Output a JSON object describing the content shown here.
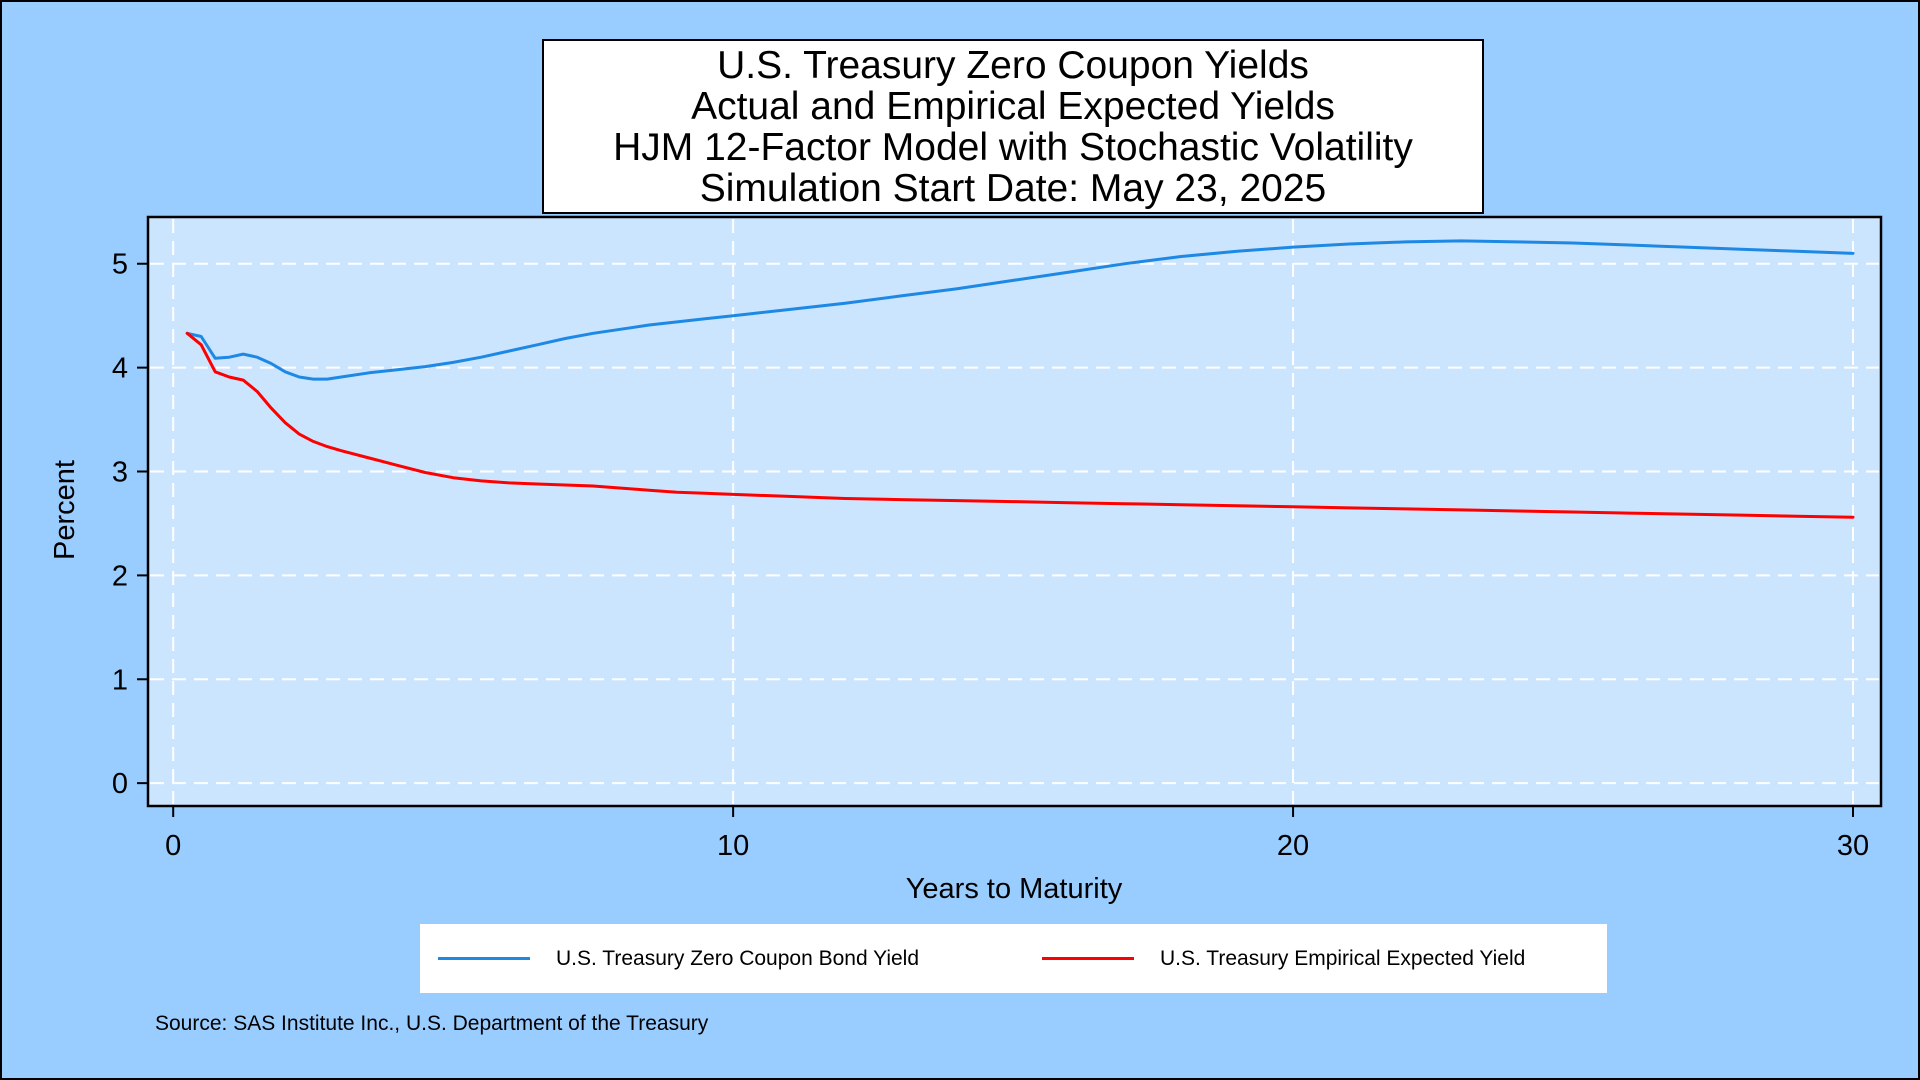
{
  "colors": {
    "outer_background": "#99ccff",
    "plot_background": "#cce5ff",
    "grid": "#ffffff",
    "series_actual": "#1e88e5",
    "series_expected": "#ff0000"
  },
  "title_lines": [
    "U.S. Treasury Zero Coupon Yields",
    "Actual and Empirical Expected Yields",
    "HJM 12-Factor Model with Stochastic Volatility",
    "Simulation Start Date: May 23, 2025"
  ],
  "source": "Source: SAS Institute Inc., U.S. Department of the Treasury",
  "chart_data": {
    "type": "line",
    "title": "U.S. Treasury Zero Coupon Yields\nActual and Empirical Expected Yields\nHJM 12-Factor Model with Stochastic Volatility\nSimulation Start Date: May 23, 2025",
    "xlabel": "Years to Maturity",
    "ylabel": "Percent",
    "xlim": [
      -0.45,
      30.5
    ],
    "ylim": [
      -0.22,
      5.45
    ],
    "x_ticks": [
      0,
      10,
      20,
      30
    ],
    "y_ticks": [
      0,
      1,
      2,
      3,
      4,
      5
    ],
    "grid": true,
    "grid_style": "dashed",
    "legend_position": "bottom",
    "series": [
      {
        "name": "U.S. Treasury Zero Coupon Bond Yield",
        "x": [
          0.25,
          0.5,
          0.75,
          1.0,
          1.25,
          1.5,
          1.75,
          2.0,
          2.25,
          2.5,
          2.75,
          3.0,
          3.5,
          4.0,
          4.5,
          5.0,
          5.5,
          6.0,
          6.5,
          7.0,
          7.5,
          8.0,
          8.5,
          9.0,
          9.5,
          10.0,
          11.0,
          12.0,
          13.0,
          14.0,
          15.0,
          16.0,
          17.0,
          18.0,
          19.0,
          20.0,
          21.0,
          22.0,
          23.0,
          24.0,
          25.0,
          26.0,
          27.0,
          28.0,
          29.0,
          30.0
        ],
        "values": [
          4.33,
          4.3,
          4.09,
          4.1,
          4.13,
          4.1,
          4.04,
          3.96,
          3.91,
          3.89,
          3.89,
          3.91,
          3.95,
          3.98,
          4.01,
          4.05,
          4.1,
          4.16,
          4.22,
          4.28,
          4.33,
          4.37,
          4.41,
          4.44,
          4.47,
          4.5,
          4.56,
          4.62,
          4.69,
          4.76,
          4.84,
          4.92,
          5.0,
          5.07,
          5.12,
          5.16,
          5.19,
          5.21,
          5.22,
          5.21,
          5.2,
          5.18,
          5.16,
          5.14,
          5.12,
          5.1
        ]
      },
      {
        "name": "U.S. Treasury Empirical Expected Yield",
        "x": [
          0.25,
          0.5,
          0.75,
          1.0,
          1.25,
          1.5,
          1.75,
          2.0,
          2.25,
          2.5,
          2.75,
          3.0,
          3.5,
          4.0,
          4.5,
          5.0,
          5.5,
          6.0,
          6.5,
          7.0,
          7.5,
          8.0,
          8.5,
          9.0,
          9.5,
          10.0,
          11.0,
          12.0,
          13.0,
          14.0,
          15.0,
          16.0,
          17.0,
          18.0,
          19.0,
          20.0,
          21.0,
          22.0,
          23.0,
          24.0,
          25.0,
          26.0,
          27.0,
          28.0,
          29.0,
          30.0
        ],
        "values": [
          4.33,
          4.22,
          3.96,
          3.91,
          3.88,
          3.77,
          3.61,
          3.47,
          3.36,
          3.29,
          3.24,
          3.2,
          3.13,
          3.06,
          2.99,
          2.94,
          2.91,
          2.89,
          2.88,
          2.87,
          2.86,
          2.84,
          2.82,
          2.8,
          2.79,
          2.78,
          2.76,
          2.74,
          2.73,
          2.72,
          2.71,
          2.7,
          2.69,
          2.68,
          2.67,
          2.66,
          2.65,
          2.64,
          2.63,
          2.62,
          2.61,
          2.6,
          2.59,
          2.58,
          2.57,
          2.56
        ]
      }
    ]
  }
}
